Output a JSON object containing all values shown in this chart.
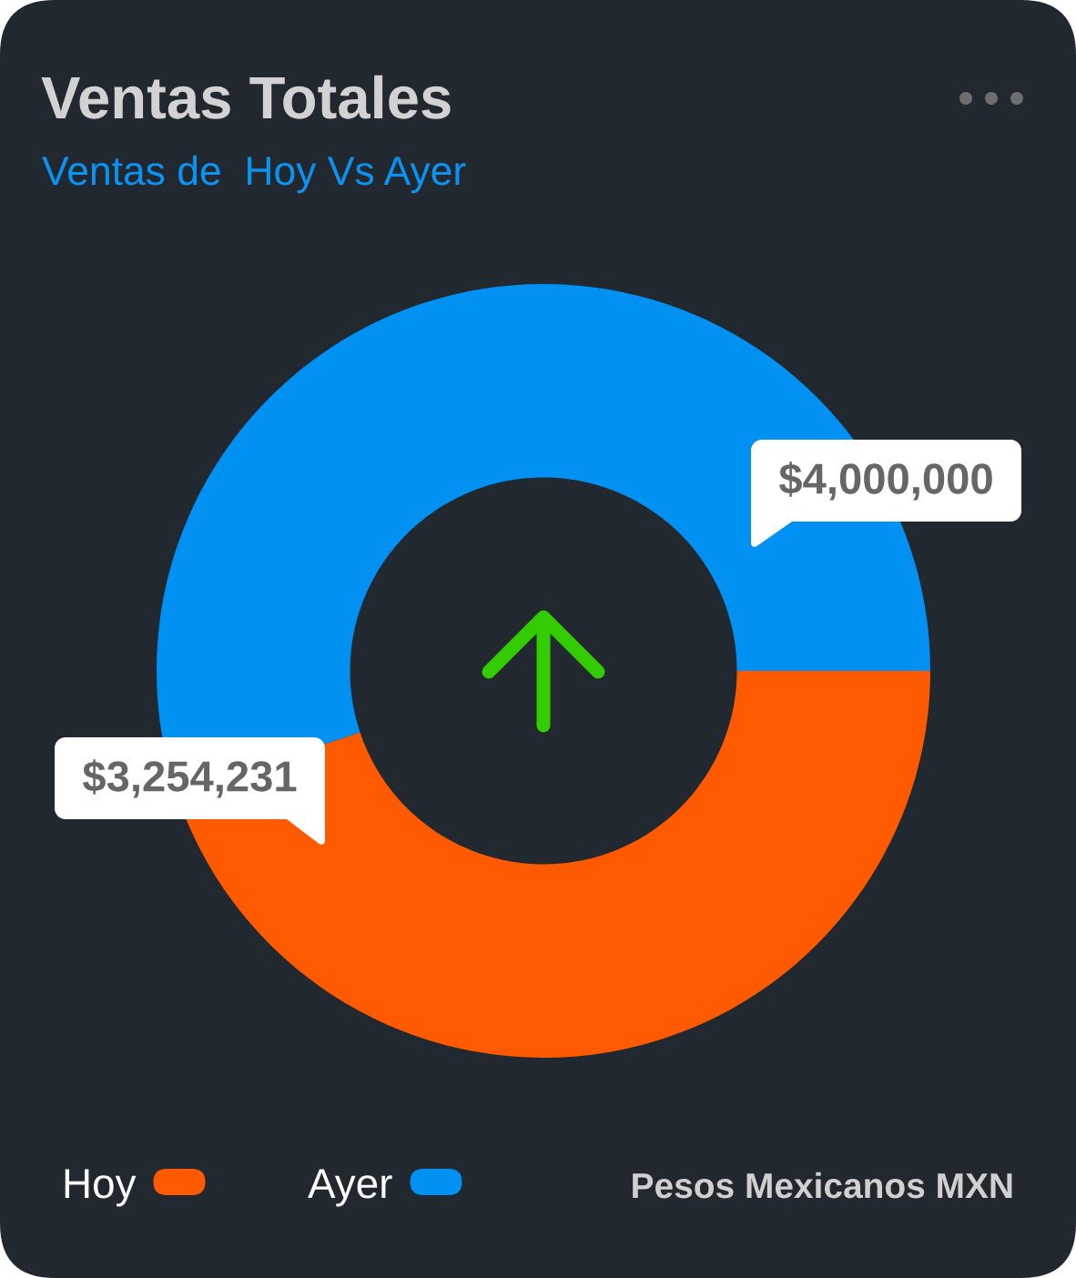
{
  "chart_data": {
    "type": "donut",
    "title": "Ventas Totales",
    "subtitle": "Ventas de  Hoy Vs Ayer",
    "categories": [
      "Hoy",
      "Ayer"
    ],
    "values": [
      3254231,
      4000000
    ],
    "colors": [
      "#ff5a00",
      "#0091f2"
    ],
    "value_labels": [
      "$3,254,231",
      "$4,000,000"
    ],
    "legend": "bottom left",
    "annotations": [
      "Pesos Mexicanos MXN"
    ]
  }
}
